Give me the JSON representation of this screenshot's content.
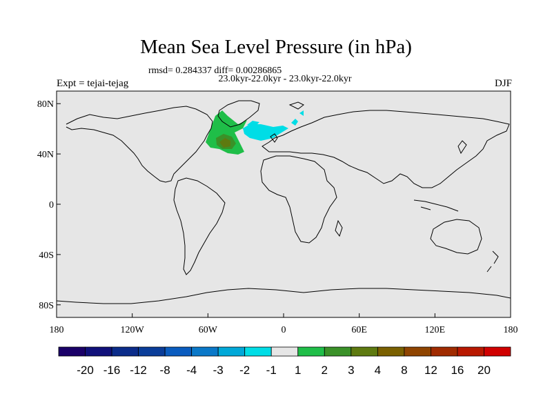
{
  "title": "Mean Sea Level Pressure (in hPa)",
  "stats": "rmsd= 0.284337 diff= 0.00286865",
  "period": "23.0kyr-22.0kyr - 23.0kyr-22.0kyr",
  "expt": "Expt = tejai-tejag",
  "season": "DJF",
  "lat_ticks": [
    "80N",
    "40N",
    "0",
    "40S",
    "80S"
  ],
  "lon_ticks": [
    "180",
    "120W",
    "60W",
    "0",
    "60E",
    "120E",
    "180"
  ],
  "colorbar": {
    "labels": [
      "-20",
      "-16",
      "-12",
      "-8",
      "-4",
      "-3",
      "-2",
      "-1",
      "1",
      "2",
      "3",
      "4",
      "8",
      "12",
      "16",
      "20"
    ],
    "colors": [
      "#1a0068",
      "#10107a",
      "#0b2c8a",
      "#0a3d99",
      "#0a5cbf",
      "#0a78c8",
      "#00a8d8",
      "#00dde6",
      "#e6e6e6",
      "#1fbe48",
      "#3a9128",
      "#5e7a10",
      "#7a6000",
      "#8f4400",
      "#a02b00",
      "#b81800",
      "#d00000"
    ]
  },
  "colors": {
    "ocean_bg": "#e6e6e6",
    "positive_1_2": "#1fbe48",
    "positive_2_3": "#3a9128",
    "positive_3_4": "#5e7a10",
    "negative_2_1": "#00dde6"
  }
}
